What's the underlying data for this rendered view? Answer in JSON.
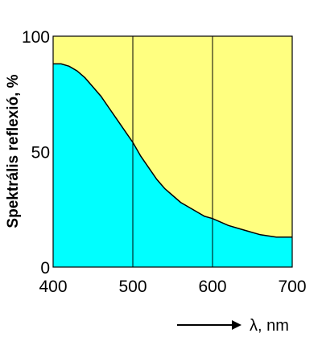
{
  "chart_data": {
    "type": "area",
    "title": "",
    "xlabel": "λ, nm",
    "ylabel": "Spektrális reflexió, %",
    "xlim": [
      400,
      700
    ],
    "ylim": [
      0,
      100
    ],
    "xticks": [
      400,
      500,
      600,
      700
    ],
    "xtick_labels": [
      "400",
      "500",
      "600",
      "700"
    ],
    "yticks": [
      0,
      50,
      100
    ],
    "ytick_labels": [
      "0",
      "50",
      "100"
    ],
    "vertical_gridlines": [
      500,
      600
    ],
    "horizontal_grid": false,
    "legend": "none",
    "series": [
      {
        "x": [
          400,
          410,
          420,
          430,
          440,
          450,
          460,
          470,
          480,
          490,
          500,
          510,
          520,
          530,
          540,
          550,
          560,
          570,
          580,
          590,
          600,
          620,
          640,
          660,
          680,
          690,
          700
        ],
        "values": [
          88,
          88,
          87,
          85,
          82,
          78,
          74,
          69,
          64,
          59,
          54,
          48,
          43,
          38,
          34,
          31,
          28,
          26,
          24,
          22,
          21,
          18,
          16,
          14,
          13,
          13,
          13
        ]
      }
    ],
    "area_color": "#00ffff",
    "background_color": "#ffff80",
    "x_arrow": true
  }
}
